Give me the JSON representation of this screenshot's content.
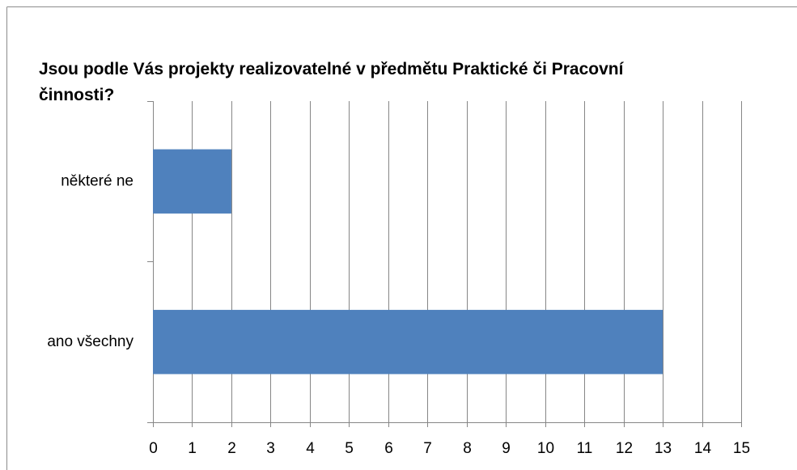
{
  "chart_data": {
    "type": "bar",
    "orientation": "horizontal",
    "title": "Jsou podle Vás projekty realizovatelné v předmětu Praktické či Pracovní činnosti?",
    "categories": [
      "některé ne",
      "ano všechny"
    ],
    "values": [
      2,
      13
    ],
    "color": "#4f81bd",
    "xlim": [
      0,
      15
    ],
    "xticks": [
      0,
      1,
      2,
      3,
      4,
      5,
      6,
      7,
      8,
      9,
      10,
      11,
      12,
      13,
      14,
      15
    ],
    "grid": true
  }
}
